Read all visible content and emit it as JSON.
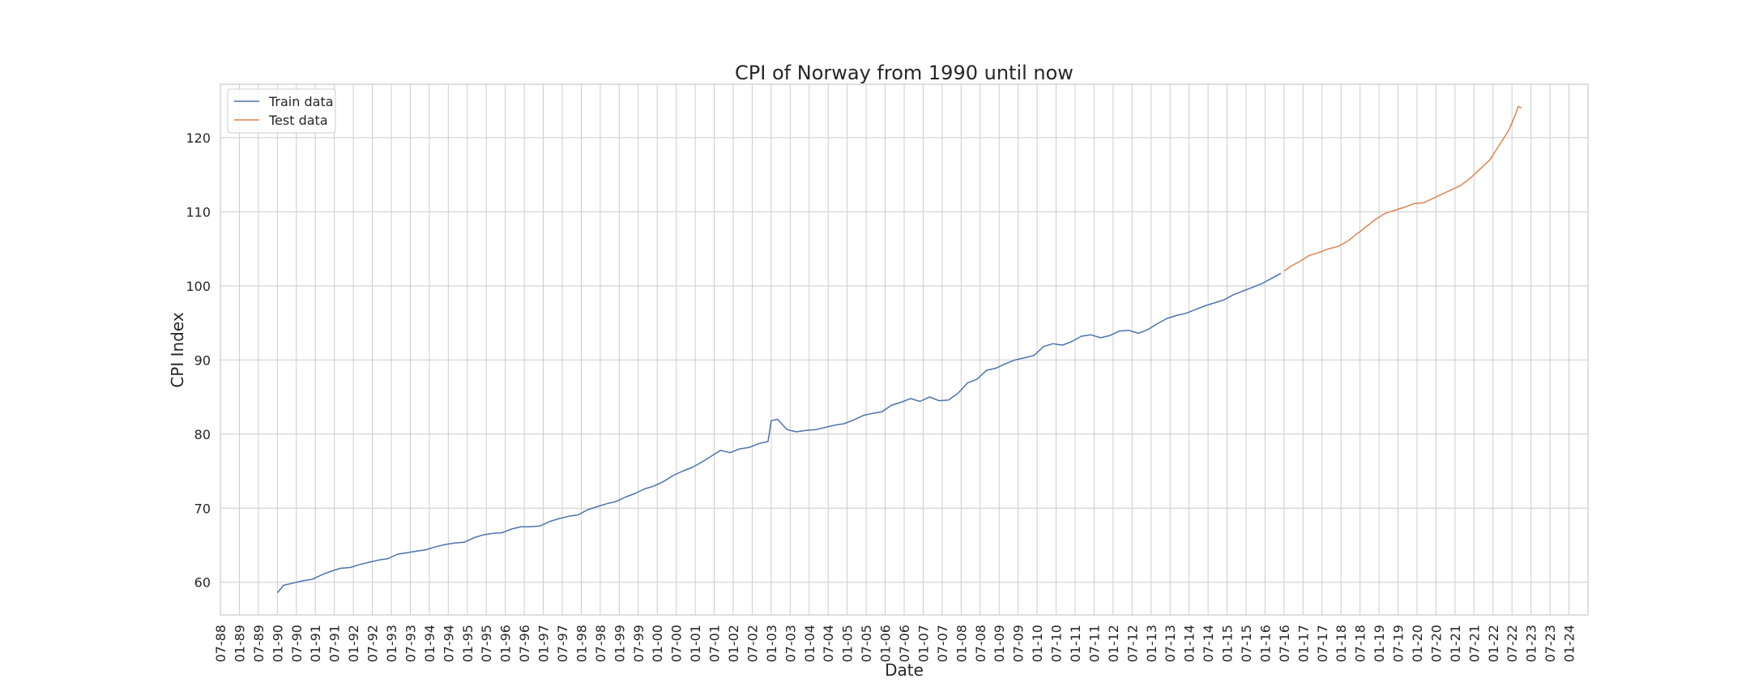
{
  "chart_data": {
    "type": "line",
    "title": "CPI of Norway from 1990 until now",
    "xlabel": "Date",
    "ylabel": "CPI Index",
    "xlim": [
      "1988-07",
      "2024-07"
    ],
    "ylim": [
      55.6,
      127.2
    ],
    "yticks": [
      60,
      70,
      80,
      90,
      100,
      110,
      120
    ],
    "xticks": [
      "07-88",
      "01-89",
      "07-89",
      "01-90",
      "07-90",
      "01-91",
      "07-91",
      "01-92",
      "07-92",
      "01-93",
      "07-93",
      "01-94",
      "07-94",
      "01-95",
      "07-95",
      "01-96",
      "07-96",
      "01-97",
      "07-97",
      "01-98",
      "07-98",
      "01-99",
      "07-99",
      "01-00",
      "07-00",
      "01-01",
      "07-01",
      "01-02",
      "07-02",
      "01-03",
      "07-03",
      "01-04",
      "07-04",
      "01-05",
      "07-05",
      "01-06",
      "07-06",
      "01-07",
      "07-07",
      "01-08",
      "07-08",
      "01-09",
      "07-09",
      "01-10",
      "07-10",
      "01-11",
      "07-11",
      "01-12",
      "07-12",
      "01-13",
      "07-13",
      "01-14",
      "07-14",
      "01-15",
      "07-15",
      "01-16",
      "07-16",
      "01-17",
      "07-17",
      "01-18",
      "07-18",
      "01-19",
      "07-19",
      "01-20",
      "07-20",
      "01-21",
      "07-21",
      "01-22",
      "07-22",
      "01-23",
      "07-23",
      "01-24"
    ],
    "grid": true,
    "legend_position": "upper-left",
    "series": [
      {
        "name": "Train data",
        "color": "#4c72b0",
        "points": [
          [
            "1990-01",
            58.6
          ],
          [
            "1990-03",
            59.6
          ],
          [
            "1990-06",
            59.9
          ],
          [
            "1990-09",
            60.2
          ],
          [
            "1990-12",
            60.4
          ],
          [
            "1991-03",
            61.0
          ],
          [
            "1991-06",
            61.5
          ],
          [
            "1991-09",
            61.9
          ],
          [
            "1991-12",
            62.0
          ],
          [
            "1992-03",
            62.4
          ],
          [
            "1992-06",
            62.7
          ],
          [
            "1992-09",
            63.0
          ],
          [
            "1992-12",
            63.2
          ],
          [
            "1993-03",
            63.8
          ],
          [
            "1993-06",
            64.0
          ],
          [
            "1993-09",
            64.2
          ],
          [
            "1993-12",
            64.4
          ],
          [
            "1994-03",
            64.8
          ],
          [
            "1994-06",
            65.1
          ],
          [
            "1994-09",
            65.3
          ],
          [
            "1994-12",
            65.4
          ],
          [
            "1995-03",
            66.0
          ],
          [
            "1995-06",
            66.4
          ],
          [
            "1995-09",
            66.6
          ],
          [
            "1995-12",
            66.7
          ],
          [
            "1996-03",
            67.2
          ],
          [
            "1996-06",
            67.5
          ],
          [
            "1996-09",
            67.5
          ],
          [
            "1996-12",
            67.6
          ],
          [
            "1997-03",
            68.2
          ],
          [
            "1997-06",
            68.6
          ],
          [
            "1997-09",
            68.9
          ],
          [
            "1997-12",
            69.1
          ],
          [
            "1998-03",
            69.8
          ],
          [
            "1998-06",
            70.2
          ],
          [
            "1998-09",
            70.6
          ],
          [
            "1998-12",
            70.9
          ],
          [
            "1999-03",
            71.5
          ],
          [
            "1999-06",
            72.0
          ],
          [
            "1999-09",
            72.6
          ],
          [
            "1999-12",
            73.0
          ],
          [
            "2000-03",
            73.6
          ],
          [
            "2000-06",
            74.4
          ],
          [
            "2000-09",
            75.0
          ],
          [
            "2000-12",
            75.5
          ],
          [
            "2001-03",
            76.2
          ],
          [
            "2001-06",
            77.0
          ],
          [
            "2001-09",
            77.8
          ],
          [
            "2001-12",
            77.5
          ],
          [
            "2002-03",
            78.0
          ],
          [
            "2002-06",
            78.2
          ],
          [
            "2002-09",
            78.7
          ],
          [
            "2002-12",
            79.0
          ],
          [
            "2003-01",
            81.8
          ],
          [
            "2003-03",
            82.0
          ],
          [
            "2003-06",
            80.6
          ],
          [
            "2003-09",
            80.3
          ],
          [
            "2003-12",
            80.5
          ],
          [
            "2004-03",
            80.6
          ],
          [
            "2004-06",
            80.9
          ],
          [
            "2004-09",
            81.2
          ],
          [
            "2004-12",
            81.4
          ],
          [
            "2005-03",
            81.9
          ],
          [
            "2005-06",
            82.5
          ],
          [
            "2005-09",
            82.8
          ],
          [
            "2005-12",
            83.0
          ],
          [
            "2006-03",
            83.9
          ],
          [
            "2006-06",
            84.3
          ],
          [
            "2006-09",
            84.8
          ],
          [
            "2006-12",
            84.4
          ],
          [
            "2007-03",
            85.0
          ],
          [
            "2007-06",
            84.5
          ],
          [
            "2007-09",
            84.6
          ],
          [
            "2007-12",
            85.5
          ],
          [
            "2008-03",
            86.9
          ],
          [
            "2008-06",
            87.4
          ],
          [
            "2008-09",
            88.6
          ],
          [
            "2008-12",
            88.9
          ],
          [
            "2009-03",
            89.5
          ],
          [
            "2009-06",
            90.0
          ],
          [
            "2009-09",
            90.3
          ],
          [
            "2009-12",
            90.6
          ],
          [
            "2010-03",
            91.8
          ],
          [
            "2010-06",
            92.2
          ],
          [
            "2010-09",
            92.0
          ],
          [
            "2010-12",
            92.5
          ],
          [
            "2011-03",
            93.2
          ],
          [
            "2011-06",
            93.4
          ],
          [
            "2011-09",
            93.0
          ],
          [
            "2011-12",
            93.3
          ],
          [
            "2012-03",
            93.9
          ],
          [
            "2012-06",
            94.0
          ],
          [
            "2012-09",
            93.6
          ],
          [
            "2012-12",
            94.1
          ],
          [
            "2013-03",
            94.9
          ],
          [
            "2013-06",
            95.6
          ],
          [
            "2013-09",
            96.0
          ],
          [
            "2013-12",
            96.3
          ],
          [
            "2014-03",
            96.8
          ],
          [
            "2014-06",
            97.3
          ],
          [
            "2014-09",
            97.7
          ],
          [
            "2014-12",
            98.1
          ],
          [
            "2015-03",
            98.8
          ],
          [
            "2015-06",
            99.3
          ],
          [
            "2015-09",
            99.8
          ],
          [
            "2015-12",
            100.3
          ],
          [
            "2016-03",
            101.0
          ],
          [
            "2016-06",
            101.7
          ]
        ]
      },
      {
        "name": "Test data",
        "color": "#dd8452",
        "points": [
          [
            "2016-07",
            102.0
          ],
          [
            "2016-09",
            102.6
          ],
          [
            "2016-12",
            103.3
          ],
          [
            "2017-03",
            104.1
          ],
          [
            "2017-06",
            104.5
          ],
          [
            "2017-09",
            105.0
          ],
          [
            "2017-12",
            105.3
          ],
          [
            "2018-03",
            106.0
          ],
          [
            "2018-06",
            107.0
          ],
          [
            "2018-09",
            108.0
          ],
          [
            "2018-12",
            109.0
          ],
          [
            "2019-03",
            109.8
          ],
          [
            "2019-06",
            110.2
          ],
          [
            "2019-09",
            110.6
          ],
          [
            "2019-12",
            111.1
          ],
          [
            "2020-03",
            111.2
          ],
          [
            "2020-06",
            111.8
          ],
          [
            "2020-09",
            112.4
          ],
          [
            "2020-12",
            113.0
          ],
          [
            "2021-03",
            113.6
          ],
          [
            "2021-06",
            114.6
          ],
          [
            "2021-09",
            115.8
          ],
          [
            "2021-12",
            117.0
          ],
          [
            "2022-03",
            119.0
          ],
          [
            "2022-06",
            121.0
          ],
          [
            "2022-08",
            123.0
          ],
          [
            "2022-09",
            124.2
          ],
          [
            "2022-10",
            124.0
          ]
        ]
      }
    ]
  }
}
